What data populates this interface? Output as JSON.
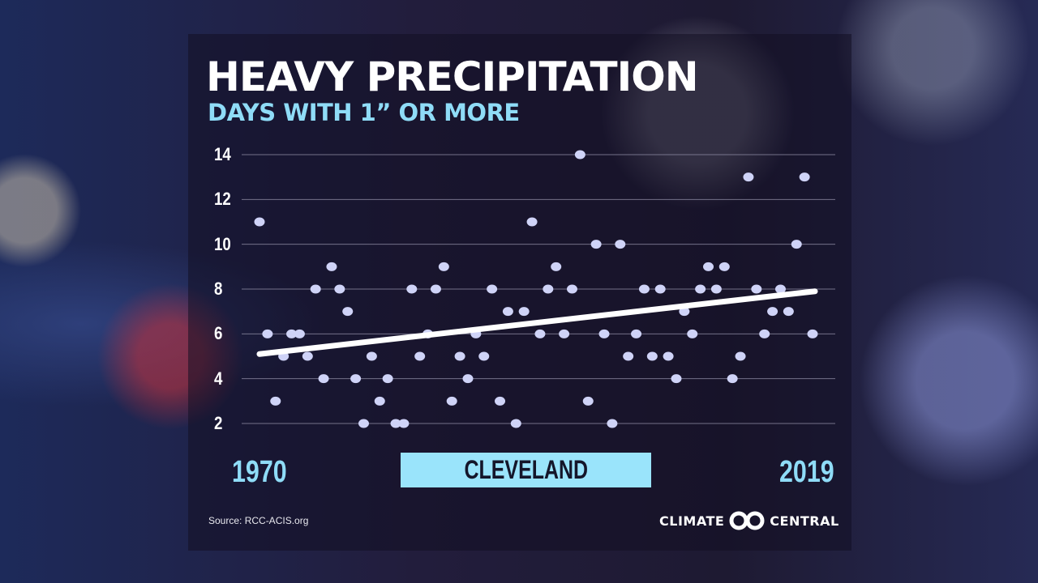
{
  "chart_data": {
    "type": "scatter",
    "title": "HEAVY PRECIPITATION",
    "subtitle": "DAYS WITH 1” OR MORE",
    "x_start_label": "1970",
    "x_end_label": "2019",
    "location_label": "CLEVELAND",
    "yticks": [
      2,
      4,
      6,
      8,
      10,
      12,
      14
    ],
    "ylim": [
      2,
      14
    ],
    "grid": true,
    "values": [
      11,
      6,
      3,
      5,
      6,
      6,
      5,
      8,
      4,
      9,
      8,
      7,
      4,
      2,
      5,
      3,
      4,
      2,
      2,
      8,
      5,
      6,
      8,
      9,
      3,
      5,
      4,
      6,
      5,
      8,
      3,
      7,
      2,
      7,
      11,
      6,
      8,
      9,
      6,
      8,
      14,
      3,
      10,
      6,
      2,
      10,
      5,
      6,
      8,
      5,
      8,
      5,
      4,
      7,
      6,
      8,
      9,
      8,
      9,
      4,
      5,
      13,
      8,
      6,
      7,
      8,
      7,
      10,
      13,
      6
    ],
    "trend": {
      "start": 5.1,
      "end": 7.9
    },
    "colors": {
      "points": "#cfd3f7",
      "trend": "#ffffff",
      "grid": "#8a88a0",
      "accent": "#8fdcf7"
    }
  },
  "footer": {
    "source": "Source: RCC-ACIS.org",
    "brand_left": "CLIMATE",
    "brand_right": "CENTRAL"
  }
}
